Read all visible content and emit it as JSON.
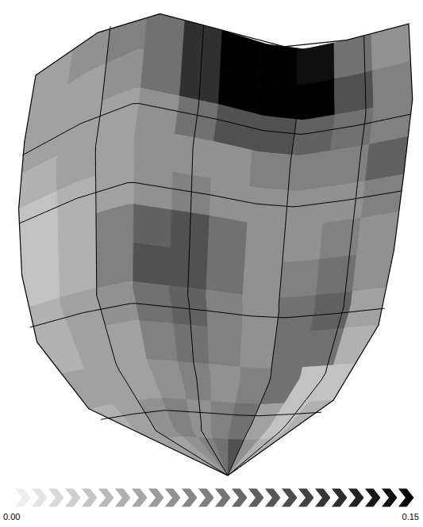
{
  "chart_data": {
    "type": "heatmap",
    "cells": [
      [
        0.05,
        0.06,
        0.07,
        0.08,
        0.12,
        0.15,
        0.15,
        0.14,
        0.08,
        0.06
      ],
      [
        0.05,
        0.05,
        0.06,
        0.08,
        0.12,
        0.15,
        0.15,
        0.15,
        0.1,
        0.07
      ],
      [
        0.05,
        0.05,
        0.05,
        0.06,
        0.08,
        0.1,
        0.1,
        0.09,
        0.08,
        0.07
      ],
      [
        0.04,
        0.05,
        0.05,
        0.06,
        0.06,
        0.06,
        0.07,
        0.07,
        0.07,
        0.09
      ],
      [
        0.03,
        0.04,
        0.05,
        0.06,
        0.07,
        0.06,
        0.06,
        0.06,
        0.06,
        0.07
      ],
      [
        0.03,
        0.04,
        0.07,
        0.09,
        0.1,
        0.08,
        0.06,
        0.06,
        0.07,
        0.06
      ],
      [
        0.03,
        0.04,
        0.07,
        0.1,
        0.1,
        0.08,
        0.06,
        0.07,
        0.08,
        0.06
      ],
      [
        0.04,
        0.05,
        0.06,
        0.08,
        0.09,
        0.07,
        0.06,
        0.08,
        0.09,
        0.05
      ],
      [
        0.04,
        0.05,
        0.05,
        0.07,
        0.08,
        0.07,
        0.06,
        0.08,
        0.08,
        0.04
      ],
      [
        0.05,
        0.05,
        0.05,
        0.06,
        0.07,
        0.06,
        0.07,
        0.08,
        0.03,
        0.03
      ],
      [
        0.04,
        0.05,
        0.06,
        0.07,
        0.06,
        0.07,
        0.08,
        0.05,
        0.03,
        0.04
      ],
      [
        0.05,
        0.05,
        0.05,
        0.06,
        0.07,
        0.08,
        0.1,
        0.06,
        0.04,
        0.04
      ]
    ],
    "colorbar": {
      "range": [
        0,
        0.15
      ],
      "ticks": [
        {
          "value": 0,
          "label": "0.00"
        },
        {
          "value": 0.15,
          "label": "0.15"
        }
      ]
    }
  }
}
